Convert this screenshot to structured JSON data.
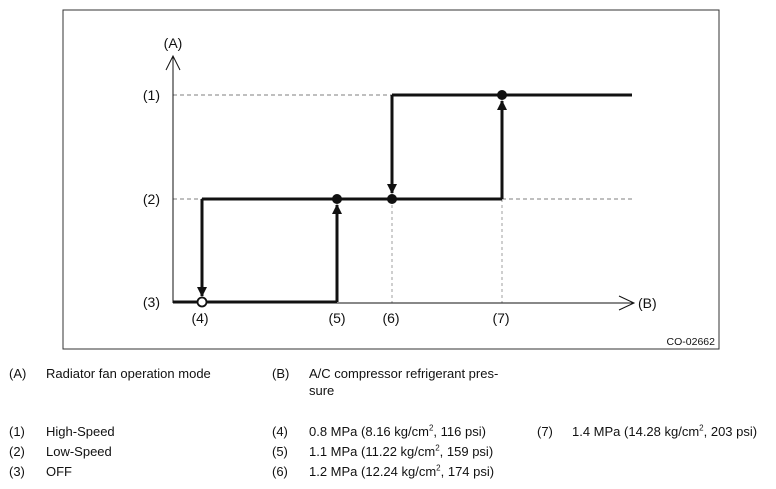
{
  "diagram": {
    "axis_y_label": "(A)",
    "axis_x_label": "(B)",
    "level_labels": [
      "(1)",
      "(2)",
      "(3)"
    ],
    "point_labels": [
      "(4)",
      "(5)",
      "(6)",
      "(7)"
    ],
    "figure_code": "CO-02662"
  },
  "legend": {
    "a_key": "(A)",
    "a_text": "Radiator fan operation mode",
    "b_key": "(B)",
    "b_text_line1": "A/C compressor refrigerant pres-",
    "b_text_line2": "sure",
    "k1": "(1)",
    "t1": "High-Speed",
    "k2": "(2)",
    "t2": "Low-Speed",
    "k3": "(3)",
    "t3": "OFF",
    "k4": "(4)",
    "t4a": "0.8 MPa (8.16 kg/cm",
    "t4sup": "2",
    "t4b": ", 116 psi)",
    "k5": "(5)",
    "t5a": "1.1 MPa (11.22 kg/cm",
    "t5sup": "2",
    "t5b": ", 159 psi)",
    "k6": "(6)",
    "t6a": "1.2 MPa (12.24 kg/cm",
    "t6sup": "2",
    "t6b": ", 174 psi)",
    "k7": "(7)",
    "t7a": "1.4 MPa (14.28 kg/cm",
    "t7sup": "2",
    "t7b": ", 203 psi)"
  }
}
